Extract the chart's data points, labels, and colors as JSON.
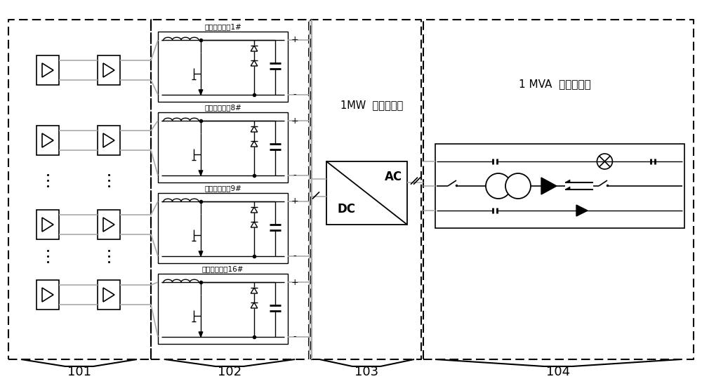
{
  "bg_color": "#ffffff",
  "line_color": "#000000",
  "gray_color": "#aaaaaa",
  "label_101": "101",
  "label_102": "102",
  "label_103": "103",
  "label_104": "104",
  "label_inverter": "1MW  并网逆变器",
  "label_transformer": "1 MVA  并网变压器",
  "dc_label": "DC",
  "ac_label": "AC",
  "smart_dc_labels": [
    "智能直流电源1#",
    "智能直流电源8#",
    "智能直流电源9#",
    "智能直流电源16#"
  ],
  "figsize": [
    10.0,
    5.4
  ],
  "dpi": 100
}
